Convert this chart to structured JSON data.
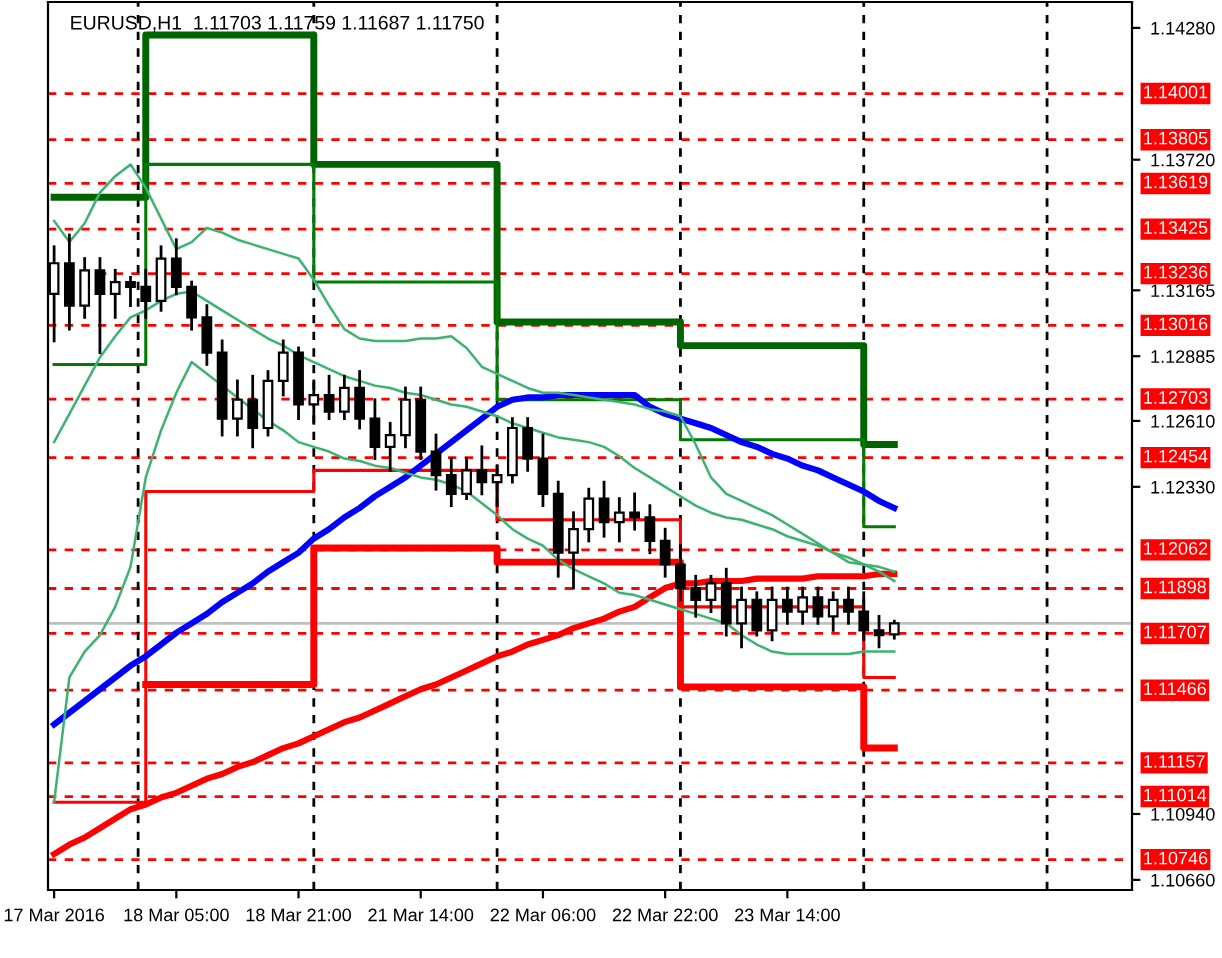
{
  "chart_data": {
    "type": "candlestick",
    "title": "EURUSD,H1  1.11703 1.11759 1.11687 1.11750",
    "color": "#000000",
    "categories": [
      "17 Mar 2016",
      null,
      null,
      null,
      null,
      null,
      null,
      null,
      "18 Mar 05:00",
      null,
      null,
      null,
      null,
      null,
      null,
      null,
      "18 Mar 21:00",
      null,
      null,
      null,
      null,
      null,
      null,
      null,
      "21 Mar 14:00",
      null,
      null,
      null,
      null,
      null,
      null,
      null,
      "22 Mar 06:00",
      null,
      null,
      null,
      null,
      null,
      null,
      null,
      "22 Mar 22:00",
      null,
      null,
      null,
      null,
      null,
      null,
      null,
      "23 Mar 14:00",
      null,
      null,
      null,
      null,
      null,
      null,
      null
    ],
    "ohlc": [
      [
        1.1315,
        1.1335,
        1.1295,
        1.1328
      ],
      [
        1.1328,
        1.134,
        1.13,
        1.131
      ],
      [
        1.131,
        1.133,
        1.1305,
        1.1325
      ],
      [
        1.1325,
        1.133,
        1.129,
        1.1315
      ],
      [
        1.1315,
        1.1325,
        1.1305,
        1.132
      ],
      [
        1.132,
        1.1322,
        1.131,
        1.1318
      ],
      [
        1.1318,
        1.1325,
        1.1305,
        1.1312
      ],
      [
        1.1312,
        1.1335,
        1.1308,
        1.133
      ],
      [
        1.133,
        1.1338,
        1.1315,
        1.1318
      ],
      [
        1.1318,
        1.132,
        1.13,
        1.1305
      ],
      [
        1.1305,
        1.131,
        1.1285,
        1.129
      ],
      [
        1.129,
        1.1295,
        1.1255,
        1.1262
      ],
      [
        1.1262,
        1.1278,
        1.1255,
        1.127
      ],
      [
        1.127,
        1.128,
        1.125,
        1.1258
      ],
      [
        1.1258,
        1.1282,
        1.1255,
        1.1278
      ],
      [
        1.1278,
        1.1295,
        1.1272,
        1.129
      ],
      [
        1.129,
        1.1292,
        1.1262,
        1.1268
      ],
      [
        1.1268,
        1.1278,
        1.126,
        1.1272
      ],
      [
        1.1272,
        1.128,
        1.1262,
        1.1265
      ],
      [
        1.1265,
        1.128,
        1.1262,
        1.1275
      ],
      [
        1.1275,
        1.1282,
        1.1258,
        1.1262
      ],
      [
        1.1262,
        1.127,
        1.1245,
        1.125
      ],
      [
        1.125,
        1.126,
        1.124,
        1.1255
      ],
      [
        1.1255,
        1.1275,
        1.125,
        1.127
      ],
      [
        1.127,
        1.1275,
        1.1245,
        1.1248
      ],
      [
        1.1248,
        1.1255,
        1.1232,
        1.1238
      ],
      [
        1.1238,
        1.1245,
        1.1225,
        1.123
      ],
      [
        1.123,
        1.1245,
        1.1228,
        1.124
      ],
      [
        1.124,
        1.125,
        1.123,
        1.1235
      ],
      [
        1.1235,
        1.1242,
        1.1225,
        1.1238
      ],
      [
        1.1238,
        1.1262,
        1.1235,
        1.1258
      ],
      [
        1.1258,
        1.1262,
        1.124,
        1.1245
      ],
      [
        1.1245,
        1.1255,
        1.1225,
        1.123
      ],
      [
        1.123,
        1.1235,
        1.1195,
        1.1205
      ],
      [
        1.1205,
        1.1222,
        1.119,
        1.1215
      ],
      [
        1.1215,
        1.1232,
        1.121,
        1.1228
      ],
      [
        1.1228,
        1.1235,
        1.1212,
        1.1218
      ],
      [
        1.1218,
        1.1228,
        1.121,
        1.1222
      ],
      [
        1.1222,
        1.123,
        1.1215,
        1.122
      ],
      [
        1.122,
        1.1225,
        1.1205,
        1.121
      ],
      [
        1.121,
        1.1215,
        1.1195,
        1.12
      ],
      [
        1.12,
        1.1208,
        1.1185,
        1.119
      ],
      [
        1.119,
        1.1195,
        1.1178,
        1.1185
      ],
      [
        1.1185,
        1.1195,
        1.118,
        1.1192
      ],
      [
        1.1192,
        1.1198,
        1.117,
        1.1175
      ],
      [
        1.1175,
        1.119,
        1.1165,
        1.1185
      ],
      [
        1.1185,
        1.1188,
        1.117,
        1.1172
      ],
      [
        1.1172,
        1.119,
        1.1168,
        1.1185
      ],
      [
        1.1185,
        1.119,
        1.1175,
        1.118
      ],
      [
        1.118,
        1.119,
        1.1175,
        1.1186
      ],
      [
        1.1186,
        1.119,
        1.1175,
        1.1178
      ],
      [
        1.1178,
        1.1188,
        1.1172,
        1.1185
      ],
      [
        1.1185,
        1.119,
        1.1175,
        1.118
      ],
      [
        1.118,
        1.1188,
        1.1168,
        1.1172
      ],
      [
        1.1172,
        1.1178,
        1.1165,
        1.117
      ],
      [
        1.11703,
        1.11759,
        1.11687,
        1.1175
      ]
    ],
    "series": [
      {
        "type": "step",
        "color": "#006400",
        "line_style": "solid",
        "values": [
          1.1356,
          1.1356,
          1.1356,
          1.1356,
          1.1356,
          1.1356,
          1.1425,
          1.1425,
          1.1425,
          1.1425,
          1.1425,
          1.1425,
          1.1425,
          1.1425,
          1.1425,
          1.1425,
          1.1425,
          1.137,
          1.137,
          1.137,
          1.137,
          1.137,
          1.137,
          1.137,
          1.137,
          1.137,
          1.137,
          1.137,
          1.137,
          1.1303,
          1.1303,
          1.1303,
          1.1303,
          1.1303,
          1.1303,
          1.1303,
          1.1303,
          1.1303,
          1.1303,
          1.1303,
          1.1303,
          1.1293,
          1.1293,
          1.1293,
          1.1293,
          1.1293,
          1.1293,
          1.1293,
          1.1293,
          1.1293,
          1.1293,
          1.1293,
          1.1293,
          1.1251,
          1.1251,
          1.1251
        ]
      },
      {
        "type": "step",
        "color": "#007a00",
        "line_style": "solid",
        "values": [
          1.1285,
          1.1285,
          1.1285,
          1.1285,
          1.1285,
          1.1285,
          1.137,
          1.137,
          1.137,
          1.137,
          1.137,
          1.137,
          1.137,
          1.137,
          1.137,
          1.137,
          1.137,
          1.132,
          1.132,
          1.132,
          1.132,
          1.132,
          1.132,
          1.132,
          1.132,
          1.132,
          1.132,
          1.132,
          1.132,
          1.127,
          1.127,
          1.127,
          1.127,
          1.127,
          1.127,
          1.127,
          1.127,
          1.127,
          1.127,
          1.127,
          1.127,
          1.1253,
          1.1253,
          1.1253,
          1.1253,
          1.1253,
          1.1253,
          1.1253,
          1.1253,
          1.1253,
          1.1253,
          1.1253,
          1.1253,
          1.1216,
          1.1216,
          1.1216
        ]
      },
      {
        "type": "step",
        "color": "#ff0000",
        "line_style": "solid",
        "values": [
          null,
          null,
          null,
          null,
          null,
          null,
          1.1149,
          1.1149,
          1.1149,
          1.1149,
          1.1149,
          1.1149,
          1.1149,
          1.1149,
          1.1149,
          1.1149,
          1.1149,
          1.1207,
          1.1207,
          1.1207,
          1.1207,
          1.1207,
          1.1207,
          1.1207,
          1.1207,
          1.1207,
          1.1207,
          1.1207,
          1.1207,
          1.1201,
          1.1201,
          1.1201,
          1.1201,
          1.1201,
          1.1201,
          1.1201,
          1.1201,
          1.1201,
          1.1201,
          1.1201,
          1.1201,
          1.1148,
          1.1148,
          1.1148,
          1.1148,
          1.1148,
          1.1148,
          1.1148,
          1.1148,
          1.1148,
          1.1148,
          1.1148,
          1.1148,
          1.1122,
          1.1122,
          1.1122
        ]
      },
      {
        "type": "step",
        "color": "#ff0000",
        "line_style": "solid",
        "values": [
          1.1099,
          1.1099,
          1.1099,
          1.1099,
          1.1099,
          1.1099,
          1.1231,
          1.1231,
          1.1231,
          1.1231,
          1.1231,
          1.1231,
          1.1231,
          1.1231,
          1.1231,
          1.1231,
          1.1231,
          1.124,
          1.124,
          1.124,
          1.124,
          1.124,
          1.124,
          1.124,
          1.124,
          1.124,
          1.124,
          1.124,
          1.124,
          1.1219,
          1.1219,
          1.1219,
          1.1219,
          1.1219,
          1.1219,
          1.1219,
          1.1219,
          1.1219,
          1.1219,
          1.1219,
          1.1219,
          1.1182,
          1.1182,
          1.1182,
          1.1182,
          1.1182,
          1.1182,
          1.1182,
          1.1182,
          1.1182,
          1.1182,
          1.1182,
          1.1182,
          1.1152,
          1.1152,
          1.1152
        ]
      },
      {
        "type": "line",
        "color": "#0000ff",
        "line_style": "solid",
        "values": [
          1.1132,
          1.1137,
          1.1142,
          1.1147,
          1.1152,
          1.1157,
          1.1161,
          1.1166,
          1.1171,
          1.1175,
          1.1179,
          1.1184,
          1.1188,
          1.1192,
          1.1197,
          1.1201,
          1.1205,
          1.1211,
          1.1215,
          1.122,
          1.1224,
          1.1229,
          1.1233,
          1.1237,
          1.1242,
          1.1247,
          1.1252,
          1.1257,
          1.1262,
          1.1267,
          1.127,
          1.1271,
          1.1271,
          1.1272,
          1.1272,
          1.1272,
          1.1272,
          1.1272,
          1.1272,
          1.1267,
          1.1264,
          1.1262,
          1.126,
          1.1258,
          1.1255,
          1.1252,
          1.125,
          1.1247,
          1.1245,
          1.1242,
          1.124,
          1.1237,
          1.1234,
          1.1231,
          1.1227,
          1.1224
        ]
      },
      {
        "type": "line",
        "color": "#ff0000",
        "line_style": "solid",
        "values": [
          1.1077,
          1.1081,
          1.1084,
          1.1088,
          1.1092,
          1.1096,
          1.1098,
          1.1101,
          1.1103,
          1.1106,
          1.1109,
          1.1111,
          1.1114,
          1.1116,
          1.1119,
          1.1122,
          1.1124,
          1.1127,
          1.113,
          1.1133,
          1.1135,
          1.1138,
          1.1141,
          1.1144,
          1.1147,
          1.1149,
          1.1152,
          1.1155,
          1.1158,
          1.1161,
          1.1163,
          1.1166,
          1.1168,
          1.117,
          1.1173,
          1.1175,
          1.1177,
          1.118,
          1.1182,
          1.1186,
          1.119,
          1.1192,
          1.1192,
          1.1193,
          1.1193,
          1.1193,
          1.1194,
          1.1194,
          1.1194,
          1.1194,
          1.1195,
          1.1195,
          1.1195,
          1.1195,
          1.1196,
          1.1196
        ]
      },
      {
        "type": "line",
        "color": "#3cb371",
        "line_style": "solid",
        "values": [
          1.1346,
          1.1337,
          1.1345,
          1.1358,
          1.1365,
          1.137,
          1.136,
          1.1347,
          1.1334,
          1.1337,
          1.1343,
          1.1341,
          1.1338,
          1.1336,
          1.1334,
          1.1332,
          1.133,
          1.1321,
          1.131,
          1.13,
          1.1296,
          1.1295,
          1.1295,
          1.1295,
          1.1296,
          1.1296,
          1.1297,
          1.1292,
          1.1284,
          1.1281,
          1.1278,
          1.1275,
          1.1273,
          1.1273,
          1.1272,
          1.1271,
          1.127,
          1.1269,
          1.1268,
          1.1266,
          1.1265,
          1.1263,
          1.1251,
          1.1237,
          1.123,
          1.1227,
          1.1224,
          1.1221,
          1.1217,
          1.1213,
          1.1209,
          1.1205,
          1.1201,
          1.12,
          1.1199,
          1.1197
        ]
      },
      {
        "type": "line",
        "color": "#3cb371",
        "line_style": "solid",
        "values": [
          1.1252,
          1.1264,
          1.1276,
          1.1288,
          1.1297,
          1.1305,
          1.1308,
          1.1312,
          1.1315,
          1.1316,
          1.1312,
          1.1308,
          1.1304,
          1.13,
          1.1296,
          1.1293,
          1.1289,
          1.1286,
          1.1283,
          1.128,
          1.1278,
          1.1276,
          1.1275,
          1.1273,
          1.1272,
          1.127,
          1.1268,
          1.1267,
          1.1265,
          1.1263,
          1.126,
          1.1258,
          1.1256,
          1.1254,
          1.1253,
          1.1252,
          1.125,
          1.1246,
          1.1241,
          1.1237,
          1.1233,
          1.1229,
          1.1225,
          1.1222,
          1.122,
          1.1219,
          1.1217,
          1.1215,
          1.1212,
          1.121,
          1.1208,
          1.1205,
          1.1203,
          1.12,
          1.1197,
          1.1193
        ]
      },
      {
        "type": "line",
        "color": "#3cb371",
        "line_style": "solid",
        "values": [
          1.1099,
          1.1152,
          1.1163,
          1.117,
          1.1182,
          1.1199,
          1.1237,
          1.1257,
          1.1273,
          1.1286,
          1.1281,
          1.1276,
          1.1271,
          1.1266,
          1.1261,
          1.1257,
          1.1252,
          1.125,
          1.1248,
          1.1245,
          1.1244,
          1.1242,
          1.1241,
          1.1239,
          1.1237,
          1.1236,
          1.1234,
          1.1231,
          1.1226,
          1.1221,
          1.1215,
          1.1211,
          1.1208,
          1.1202,
          1.1198,
          1.1195,
          1.1192,
          1.1188,
          1.1187,
          1.1185,
          1.1183,
          1.1181,
          1.1179,
          1.1177,
          1.1175,
          1.117,
          1.1166,
          1.1163,
          1.1162,
          1.1162,
          1.1162,
          1.1162,
          1.1162,
          1.1163,
          1.1163,
          1.1163
        ]
      }
    ],
    "ref_lines": [
      {
        "axis": "y",
        "value": 1.14001,
        "label": "1.14001",
        "color": "#ff0000",
        "line_style": "dashed"
      },
      {
        "axis": "y",
        "value": 1.13805,
        "label": "1.13805",
        "color": "#ff0000",
        "line_style": "dashed"
      },
      {
        "axis": "y",
        "value": 1.13619,
        "label": "1.13619",
        "color": "#ff0000",
        "line_style": "dashed"
      },
      {
        "axis": "y",
        "value": 1.13425,
        "label": "1.13425",
        "color": "#ff0000",
        "line_style": "dashed"
      },
      {
        "axis": "y",
        "value": 1.13236,
        "label": "1.13236",
        "color": "#ff0000",
        "line_style": "dashed"
      },
      {
        "axis": "y",
        "value": 1.13016,
        "label": "1.13016",
        "color": "#ff0000",
        "line_style": "dashed"
      },
      {
        "axis": "y",
        "value": 1.12703,
        "label": "1.12703",
        "color": "#ff0000",
        "line_style": "dashed"
      },
      {
        "axis": "y",
        "value": 1.12454,
        "label": "1.12454",
        "color": "#ff0000",
        "line_style": "dashed"
      },
      {
        "axis": "y",
        "value": 1.12062,
        "label": "1.12062",
        "color": "#ff0000",
        "line_style": "dashed"
      },
      {
        "axis": "y",
        "value": 1.11898,
        "label": "1.11898",
        "color": "#ff0000",
        "line_style": "dashed"
      },
      {
        "axis": "y",
        "value": 1.11707,
        "label": "1.11707",
        "color": "#ff0000",
        "line_style": "dashed"
      },
      {
        "axis": "y",
        "value": 1.11466,
        "label": "1.11466",
        "color": "#ff0000",
        "line_style": "dashed"
      },
      {
        "axis": "y",
        "value": 1.11157,
        "label": "1.11157",
        "color": "#ff0000",
        "line_style": "dashed"
      },
      {
        "axis": "y",
        "value": 1.11014,
        "label": "1.11014",
        "color": "#ff0000",
        "line_style": "dashed"
      },
      {
        "axis": "y",
        "value": 1.10746,
        "label": "1.10746",
        "color": "#ff0000",
        "line_style": "dashed"
      },
      {
        "axis": "y",
        "value": 1.1175,
        "color": "#c0c0c0",
        "line_style": "solid"
      }
    ],
    "ylim": [
      1.10617,
      1.1439
    ],
    "yticks": [
      {
        "value": 1.1428,
        "label": "1.14280"
      },
      {
        "value": 1.1372,
        "label": "1.13720"
      },
      {
        "value": 1.13165,
        "label": "1.13165"
      },
      {
        "value": 1.12885,
        "label": "1.12885"
      },
      {
        "value": 1.1261,
        "label": "1.12610"
      },
      {
        "value": 1.1233,
        "label": "1.12330"
      },
      {
        "value": 1.1094,
        "label": "1.10940"
      },
      {
        "value": 1.1066,
        "label": "1.10660"
      }
    ],
    "grid": "x",
    "legend": false
  }
}
